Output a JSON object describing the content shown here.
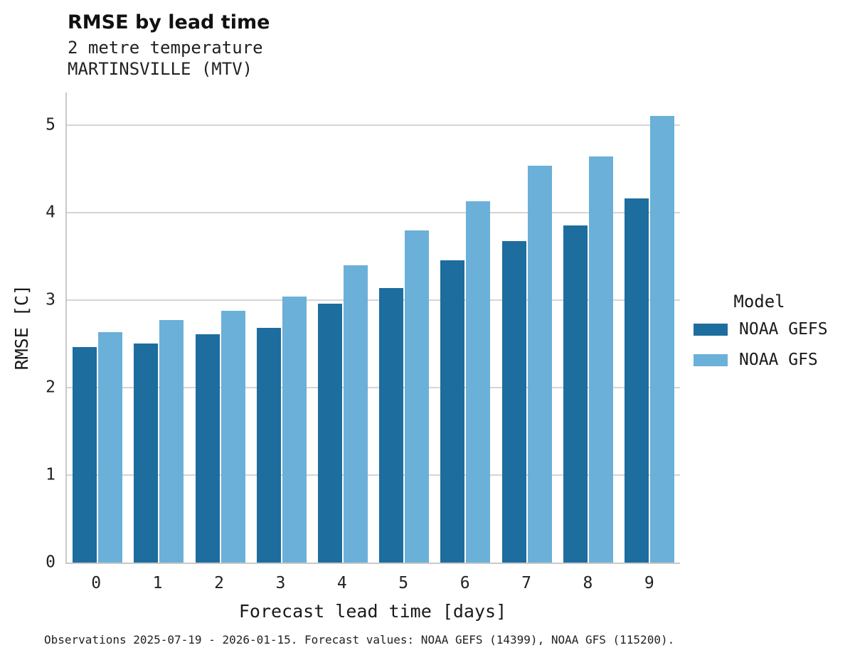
{
  "header": {
    "title": "RMSE by lead time",
    "subtitle_line1": "2 metre temperature",
    "subtitle_line2": "MARTINSVILLE (MTV)"
  },
  "chart_data": {
    "type": "bar",
    "title": "RMSE by lead time",
    "subtitle": [
      "2 metre temperature",
      "MARTINSVILLE (MTV)"
    ],
    "categories": [
      "0",
      "1",
      "2",
      "3",
      "4",
      "5",
      "6",
      "7",
      "8",
      "9"
    ],
    "series": [
      {
        "name": "NOAA GEFS",
        "color": "#1d6d9e",
        "values": [
          2.46,
          2.5,
          2.61,
          2.68,
          2.96,
          3.14,
          3.45,
          3.67,
          3.85,
          4.16
        ]
      },
      {
        "name": "NOAA GFS",
        "color": "#6bb0d8",
        "values": [
          2.63,
          2.77,
          2.88,
          3.04,
          3.4,
          3.79,
          4.13,
          4.53,
          4.64,
          5.1
        ]
      }
    ],
    "xlabel": "Forecast lead time [days]",
    "ylabel": "RMSE [C]",
    "ylim": [
      0,
      5.37
    ],
    "yticks": [
      0,
      1,
      2,
      3,
      4,
      5
    ],
    "grid": "horizontal-only",
    "legend_position": "right"
  },
  "legend": {
    "title": "Model",
    "entries": [
      {
        "label": "NOAA GEFS",
        "color": "#1d6d9e"
      },
      {
        "label": "NOAA GFS",
        "color": "#6bb0d8"
      }
    ]
  },
  "footer": {
    "text": "Observations 2025-07-19 - 2026-01-15. Forecast values: NOAA GEFS (14399), NOAA GFS (115200)."
  },
  "colors": {
    "gefs": "#1d6d9e",
    "gfs": "#6bb0d8",
    "gridline": "#d5d5d5",
    "spine": "#c9c9c9",
    "background": "#ffffff"
  }
}
